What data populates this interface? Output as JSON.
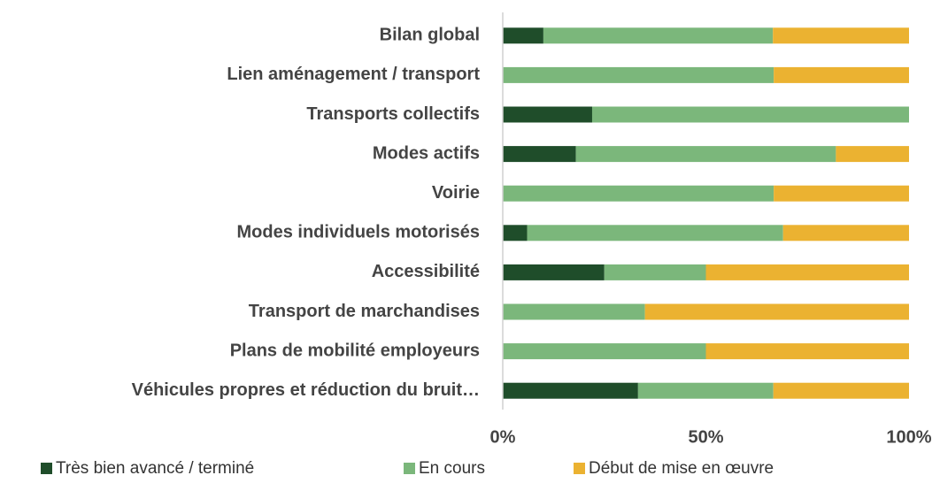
{
  "chart_data": {
    "type": "stacked-bar-horizontal",
    "categories": [
      "Bilan global",
      "Lien aménagement / transport",
      "Transports collectifs",
      "Modes actifs",
      "Voirie",
      "Modes individuels motorisés",
      "Accessibilité",
      "Transport de marchandises",
      "Plans de mobilité employeurs",
      "Véhicules propres et réduction du bruit…"
    ],
    "series": [
      {
        "name": "Très bien avancé / terminé",
        "color": "#1f4d2a",
        "values": [
          10,
          0,
          22,
          18,
          0,
          6,
          25,
          0,
          0,
          33.3
        ]
      },
      {
        "name": "En cours",
        "color": "#7bb77b",
        "values": [
          56.5,
          66.7,
          78,
          64,
          66.7,
          63,
          25,
          35,
          50,
          33.3
        ]
      },
      {
        "name": "Début de mise en œuvre",
        "color": "#ebb231",
        "values": [
          33.5,
          33.3,
          0,
          18,
          33.3,
          31,
          50,
          65,
          50,
          33.4
        ]
      }
    ],
    "xlim": [
      0,
      100
    ],
    "xticks": [
      {
        "value": 0,
        "label": "0%"
      },
      {
        "value": 50,
        "label": "50%"
      },
      {
        "value": 100,
        "label": "100%"
      }
    ]
  }
}
